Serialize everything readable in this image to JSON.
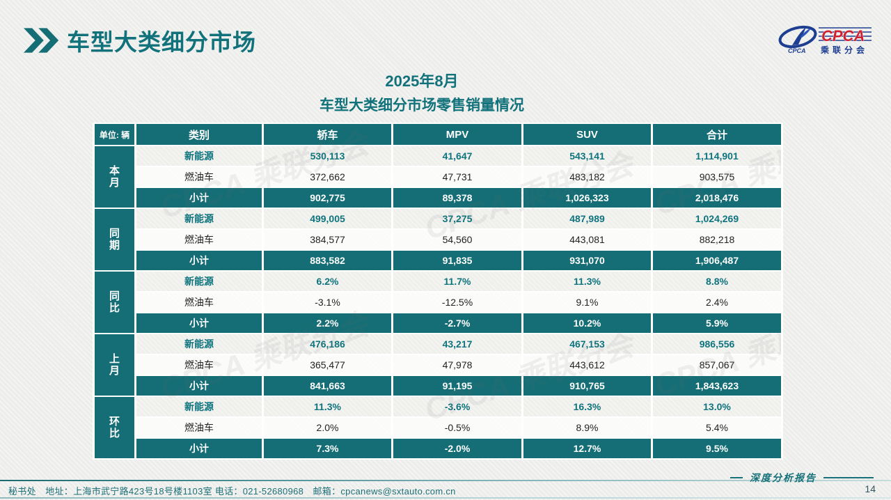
{
  "header": {
    "title": "车型大类细分市场"
  },
  "logo": {
    "brand": "CPCA",
    "brand_sub": "乘联分会",
    "emblem_caption": "CPCA"
  },
  "subtitle": {
    "line1": "2025年8月",
    "line2": "车型大类细分市场零售销量情况"
  },
  "watermark": {
    "text": "CPCA 乘联分会"
  },
  "table": {
    "unit_label": "单位: 辆",
    "columns": [
      "类别",
      "轿车",
      "MPV",
      "SUV",
      "合计"
    ],
    "groups": [
      {
        "label": "本月",
        "rows": [
          {
            "category": "新能源",
            "style": "nev",
            "values": [
              "530,113",
              "41,647",
              "543,141",
              "1,114,901"
            ]
          },
          {
            "category": "燃油车",
            "style": "fuel",
            "values": [
              "372,662",
              "47,731",
              "483,182",
              "903,575"
            ]
          },
          {
            "category": "小计",
            "style": "sub",
            "values": [
              "902,775",
              "89,378",
              "1,026,323",
              "2,018,476"
            ]
          }
        ]
      },
      {
        "label": "同期",
        "rows": [
          {
            "category": "新能源",
            "style": "nev",
            "values": [
              "499,005",
              "37,275",
              "487,989",
              "1,024,269"
            ]
          },
          {
            "category": "燃油车",
            "style": "fuel",
            "values": [
              "384,577",
              "54,560",
              "443,081",
              "882,218"
            ]
          },
          {
            "category": "小计",
            "style": "sub",
            "values": [
              "883,582",
              "91,835",
              "931,070",
              "1,906,487"
            ]
          }
        ]
      },
      {
        "label": "同比",
        "rows": [
          {
            "category": "新能源",
            "style": "nev",
            "values": [
              "6.2%",
              "11.7%",
              "11.3%",
              "8.8%"
            ]
          },
          {
            "category": "燃油车",
            "style": "fuel",
            "values": [
              "-3.1%",
              "-12.5%",
              "9.1%",
              "2.4%"
            ]
          },
          {
            "category": "小计",
            "style": "sub",
            "values": [
              "2.2%",
              "-2.7%",
              "10.2%",
              "5.9%"
            ]
          }
        ]
      },
      {
        "label": "上月",
        "rows": [
          {
            "category": "新能源",
            "style": "nev",
            "values": [
              "476,186",
              "43,217",
              "467,153",
              "986,556"
            ]
          },
          {
            "category": "燃油车",
            "style": "fuel",
            "values": [
              "365,477",
              "47,978",
              "443,612",
              "857,067"
            ]
          },
          {
            "category": "小计",
            "style": "sub",
            "values": [
              "841,663",
              "91,195",
              "910,765",
              "1,843,623"
            ]
          }
        ]
      },
      {
        "label": "环比",
        "rows": [
          {
            "category": "新能源",
            "style": "nev",
            "values": [
              "11.3%",
              "-3.6%",
              "16.3%",
              "13.0%"
            ]
          },
          {
            "category": "燃油车",
            "style": "fuel",
            "values": [
              "2.0%",
              "-0.5%",
              "8.9%",
              "5.4%"
            ]
          },
          {
            "category": "小计",
            "style": "sub",
            "values": [
              "7.3%",
              "-2.0%",
              "12.7%",
              "9.5%"
            ]
          }
        ]
      }
    ]
  },
  "footer": {
    "contact": "秘书处　地址：上海市武宁路423号18号楼1103室 电话：021-52680968　邮箱：cpcanews@sxtauto.com.cn",
    "report_label": "深度分析报告",
    "page_number": "14"
  },
  "colors": {
    "teal_fill": "#156e75",
    "teal_text": "#0e747d",
    "title_teal": "#12727b",
    "logo_red": "#cf2030",
    "logo_blue": "#1e3e92"
  }
}
